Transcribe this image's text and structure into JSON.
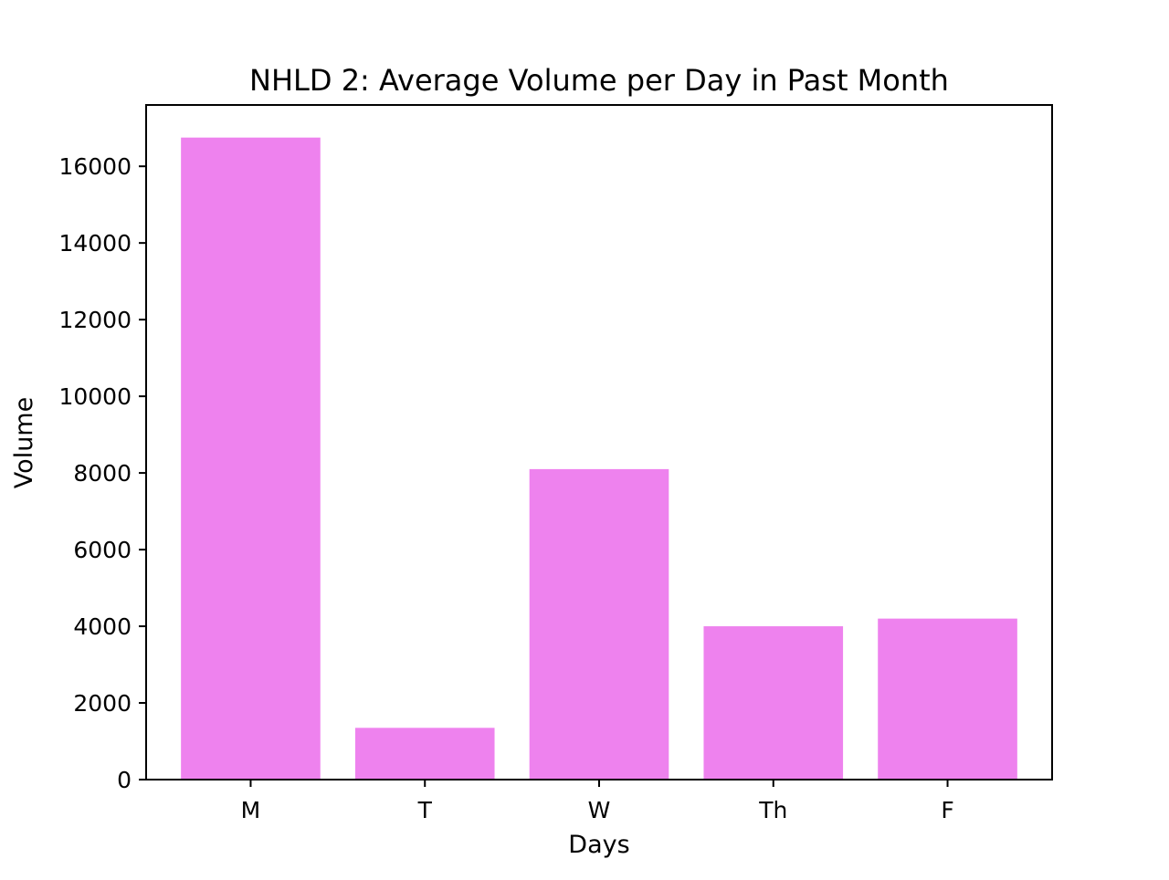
{
  "chart_data": {
    "type": "bar",
    "title": "NHLD 2: Average Volume per Day in Past Month",
    "xlabel": "Days",
    "ylabel": "Volume",
    "categories": [
      "M",
      "T",
      "W",
      "Th",
      "F"
    ],
    "values": [
      16750,
      1350,
      8100,
      4000,
      4200
    ],
    "ylim": [
      0,
      17600
    ],
    "yticks": [
      0,
      2000,
      4000,
      6000,
      8000,
      10000,
      12000,
      14000,
      16000
    ],
    "ytick_labels": [
      "0",
      "2000",
      "4000",
      "6000",
      "8000",
      "10000",
      "12000",
      "14000",
      "16000"
    ],
    "bar_color": "#ee82ee",
    "grid": false,
    "legend": "none"
  }
}
